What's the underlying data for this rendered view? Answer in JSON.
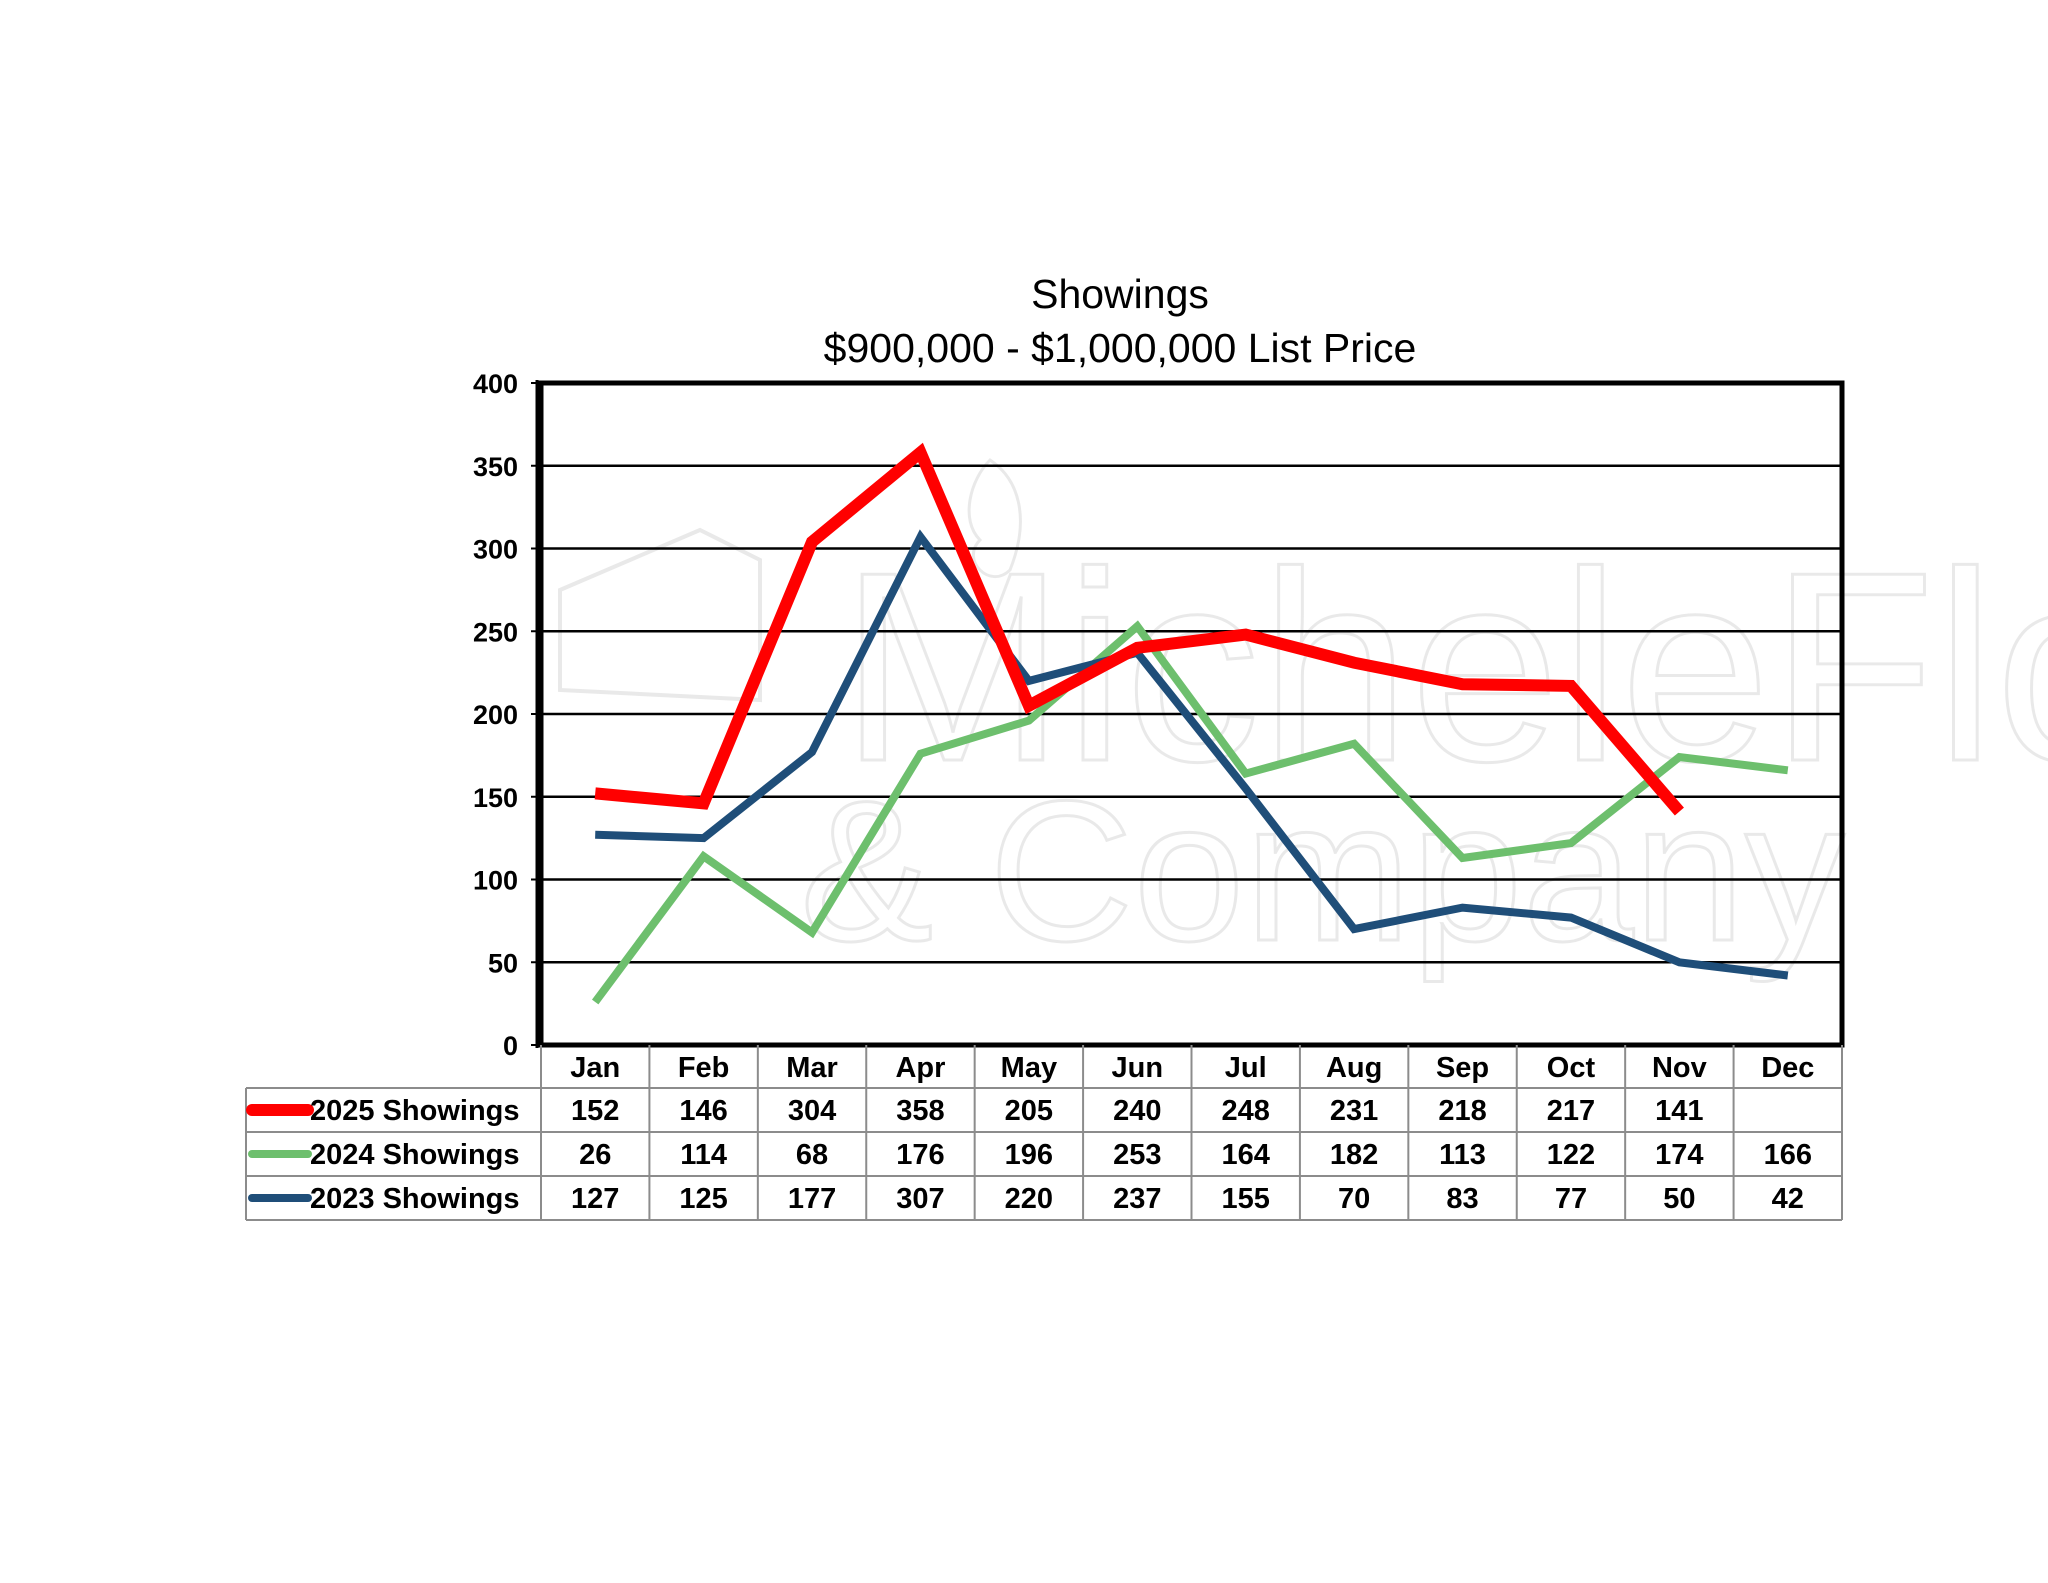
{
  "chart_data": {
    "type": "line",
    "title": "Showings",
    "subtitle": "$900,000 - $1,000,000 List Price",
    "categories": [
      "Jan",
      "Feb",
      "Mar",
      "Apr",
      "May",
      "Jun",
      "Jul",
      "Aug",
      "Sep",
      "Oct",
      "Nov",
      "Dec"
    ],
    "ylim": [
      0,
      400
    ],
    "yticks": [
      0,
      50,
      100,
      150,
      200,
      250,
      300,
      350,
      400
    ],
    "grid": true,
    "legend": "data-table-below",
    "xlabel": "",
    "ylabel": "",
    "series": [
      {
        "name": "2025 Showings",
        "color": "#ff0000",
        "values": [
          152,
          146,
          304,
          358,
          205,
          240,
          248,
          231,
          218,
          217,
          141,
          null
        ]
      },
      {
        "name": "2024 Showings",
        "color": "#6dbf6d",
        "values": [
          26,
          114,
          68,
          176,
          196,
          253,
          164,
          182,
          113,
          122,
          174,
          166
        ]
      },
      {
        "name": "2023 Showings",
        "color": "#1f4e79",
        "values": [
          127,
          125,
          177,
          307,
          220,
          237,
          155,
          70,
          83,
          77,
          50,
          42
        ]
      }
    ]
  },
  "watermark": {
    "line1": "MicheleFlory",
    "line2": "& Company"
  }
}
